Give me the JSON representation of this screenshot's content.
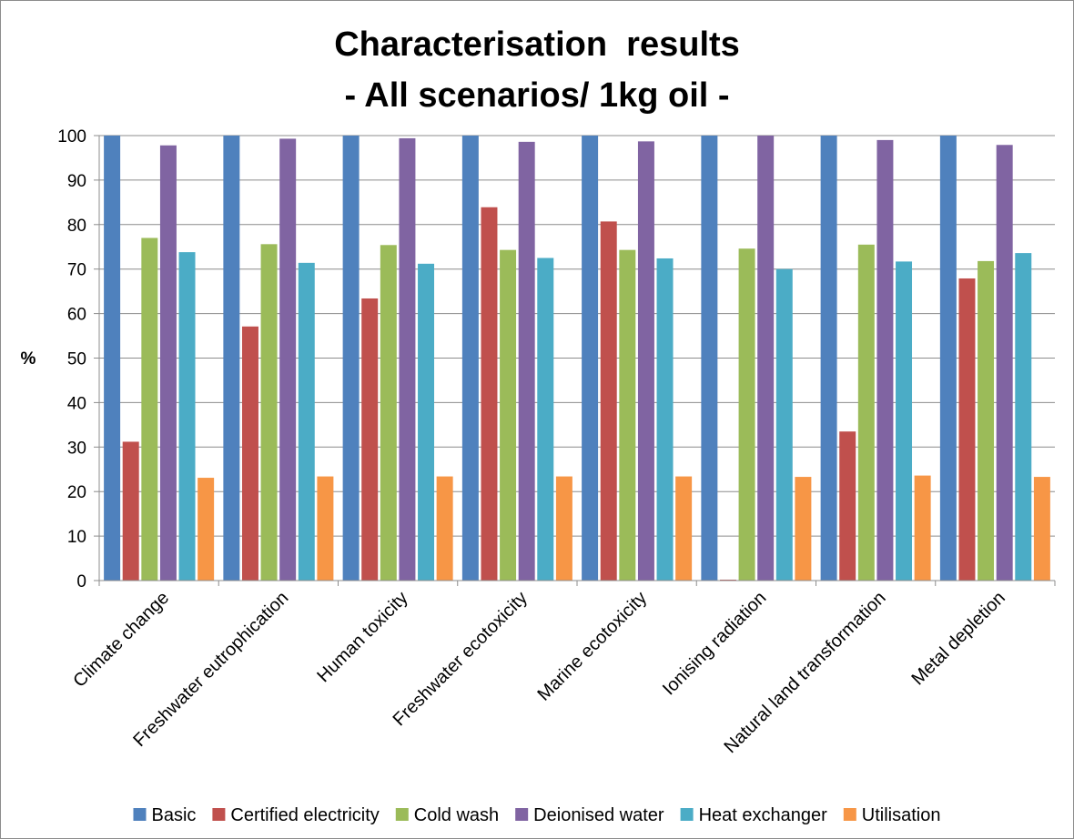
{
  "chart_data": {
    "type": "bar",
    "title": "Characterisation  results",
    "subtitle": "- All scenarios/ 1kg oil -",
    "xlabel": "",
    "ylabel": "%",
    "ylim": [
      0,
      100
    ],
    "yticks": [
      0,
      10,
      20,
      30,
      40,
      50,
      60,
      70,
      80,
      90,
      100
    ],
    "grid": "horizontal",
    "legend_position": "bottom",
    "categories": [
      "Climate change",
      "Freshwater eutrophication",
      "Human toxicity",
      "Freshwater ecotoxicity",
      "Marine ecotoxicity",
      "Ionising radiation",
      "Natural land transformation",
      "Metal depletion"
    ],
    "series": [
      {
        "name": "Basic",
        "color": "#4F81BD",
        "values": [
          100,
          100,
          100,
          100,
          100,
          100,
          100,
          100
        ]
      },
      {
        "name": "Certified electricity",
        "color": "#C0504D",
        "values": [
          31.2,
          57.1,
          63.4,
          83.9,
          80.7,
          0.2,
          33.5,
          67.9
        ]
      },
      {
        "name": "Cold wash",
        "color": "#9BBB59",
        "values": [
          77.0,
          75.6,
          75.4,
          74.3,
          74.3,
          74.6,
          75.5,
          71.8
        ]
      },
      {
        "name": "Deionised water",
        "color": "#8064A2",
        "values": [
          97.8,
          99.3,
          99.4,
          98.6,
          98.7,
          100,
          99.0,
          97.9
        ]
      },
      {
        "name": "Heat exchanger",
        "color": "#4BACC6",
        "values": [
          73.8,
          71.4,
          71.2,
          72.5,
          72.4,
          70.0,
          71.7,
          73.6
        ]
      },
      {
        "name": "Utilisation",
        "color": "#F79646",
        "values": [
          23.1,
          23.4,
          23.4,
          23.4,
          23.4,
          23.3,
          23.6,
          23.3
        ]
      }
    ]
  }
}
